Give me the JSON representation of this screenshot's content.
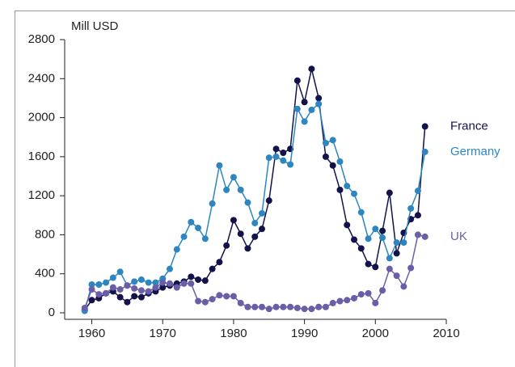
{
  "chart_data": {
    "type": "line",
    "y_label": "Mill USD",
    "x": [
      1959,
      1960,
      1961,
      1962,
      1963,
      1964,
      1965,
      1966,
      1967,
      1968,
      1969,
      1970,
      1971,
      1972,
      1973,
      1974,
      1975,
      1976,
      1977,
      1978,
      1979,
      1980,
      1981,
      1982,
      1983,
      1984,
      1985,
      1986,
      1987,
      1988,
      1989,
      1990,
      1991,
      1992,
      1993,
      1994,
      1995,
      1996,
      1997,
      1998,
      1999,
      2000,
      2001,
      2002,
      2003,
      2004,
      2005,
      2006,
      2007
    ],
    "series": [
      {
        "name": "France",
        "color": "#14124a",
        "values": [
          30,
          130,
          150,
          200,
          220,
          160,
          110,
          170,
          160,
          200,
          220,
          260,
          280,
          300,
          320,
          370,
          340,
          330,
          450,
          520,
          690,
          950,
          810,
          660,
          780,
          860,
          1150,
          1680,
          1640,
          1680,
          2380,
          2160,
          2500,
          2200,
          1600,
          1510,
          1260,
          900,
          750,
          660,
          500,
          470,
          840,
          1230,
          610,
          820,
          960,
          1000,
          1910
        ]
      },
      {
        "name": "Germany",
        "color": "#2e86c1",
        "values": [
          20,
          290,
          290,
          310,
          360,
          420,
          280,
          320,
          340,
          310,
          310,
          350,
          450,
          650,
          780,
          930,
          870,
          760,
          1120,
          1510,
          1260,
          1390,
          1260,
          1130,
          920,
          1020,
          1590,
          1600,
          1560,
          1520,
          2090,
          1960,
          2080,
          2140,
          1740,
          1770,
          1550,
          1300,
          1220,
          1030,
          760,
          860,
          770,
          560,
          720,
          720,
          1070,
          1250,
          1650
        ]
      },
      {
        "name": "UK",
        "color": "#6a5ea8",
        "values": [
          50,
          240,
          190,
          200,
          260,
          240,
          280,
          250,
          230,
          220,
          260,
          310,
          300,
          260,
          300,
          300,
          120,
          110,
          140,
          180,
          170,
          170,
          100,
          60,
          60,
          60,
          40,
          60,
          60,
          60,
          50,
          40,
          40,
          60,
          60,
          100,
          120,
          130,
          150,
          190,
          200,
          100,
          230,
          450,
          380,
          270,
          460,
          800,
          780
        ]
      }
    ],
    "xlim": [
      1958,
      2010
    ],
    "xticks": [
      1960,
      1970,
      1980,
      1990,
      2000,
      2010
    ],
    "ylim": [
      0,
      2800
    ],
    "yticks": [
      0,
      400,
      800,
      1200,
      1600,
      2000,
      2400,
      2800
    ]
  }
}
